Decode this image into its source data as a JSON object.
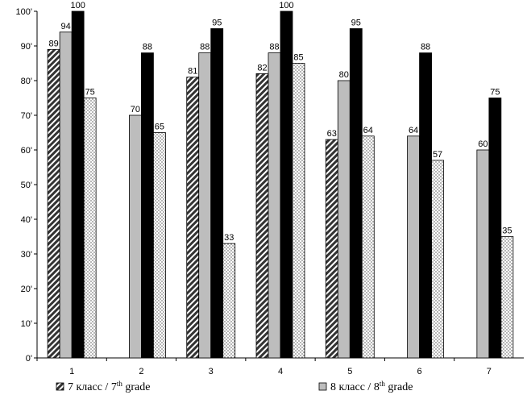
{
  "chart_data": {
    "type": "bar",
    "categories": [
      "1",
      "2",
      "3",
      "4",
      "5",
      "6",
      "7"
    ],
    "ylim": [
      0,
      100
    ],
    "ytick_step": 10,
    "ytick_labels": [
      "0'",
      "10'",
      "20'",
      "30'",
      "40'",
      "50'",
      "60'",
      "70'",
      "80'",
      "90'",
      "100'"
    ],
    "grid": false,
    "legend_position": "bottom",
    "series": [
      {
        "name": "7 класс / 7th grade",
        "pattern": "diagonal-hatch",
        "values": [
          89,
          null,
          81,
          82,
          63,
          null,
          null
        ]
      },
      {
        "name": "8 класс / 8th grade",
        "color": "#bdbdbd",
        "values": [
          94,
          70,
          88,
          88,
          80,
          64,
          60
        ]
      },
      {
        "name": "",
        "color": "#000000",
        "values": [
          100,
          88,
          95,
          100,
          95,
          88,
          75
        ]
      },
      {
        "name": "",
        "pattern": "dots",
        "values": [
          75,
          65,
          33,
          85,
          64,
          57,
          35
        ]
      }
    ]
  },
  "legend": {
    "items": [
      {
        "prefix": "7 класс / 7",
        "sup": "th",
        "suffix": " grade"
      },
      {
        "prefix": "8 класс / 8",
        "sup": "th",
        "suffix": " grade"
      }
    ]
  }
}
